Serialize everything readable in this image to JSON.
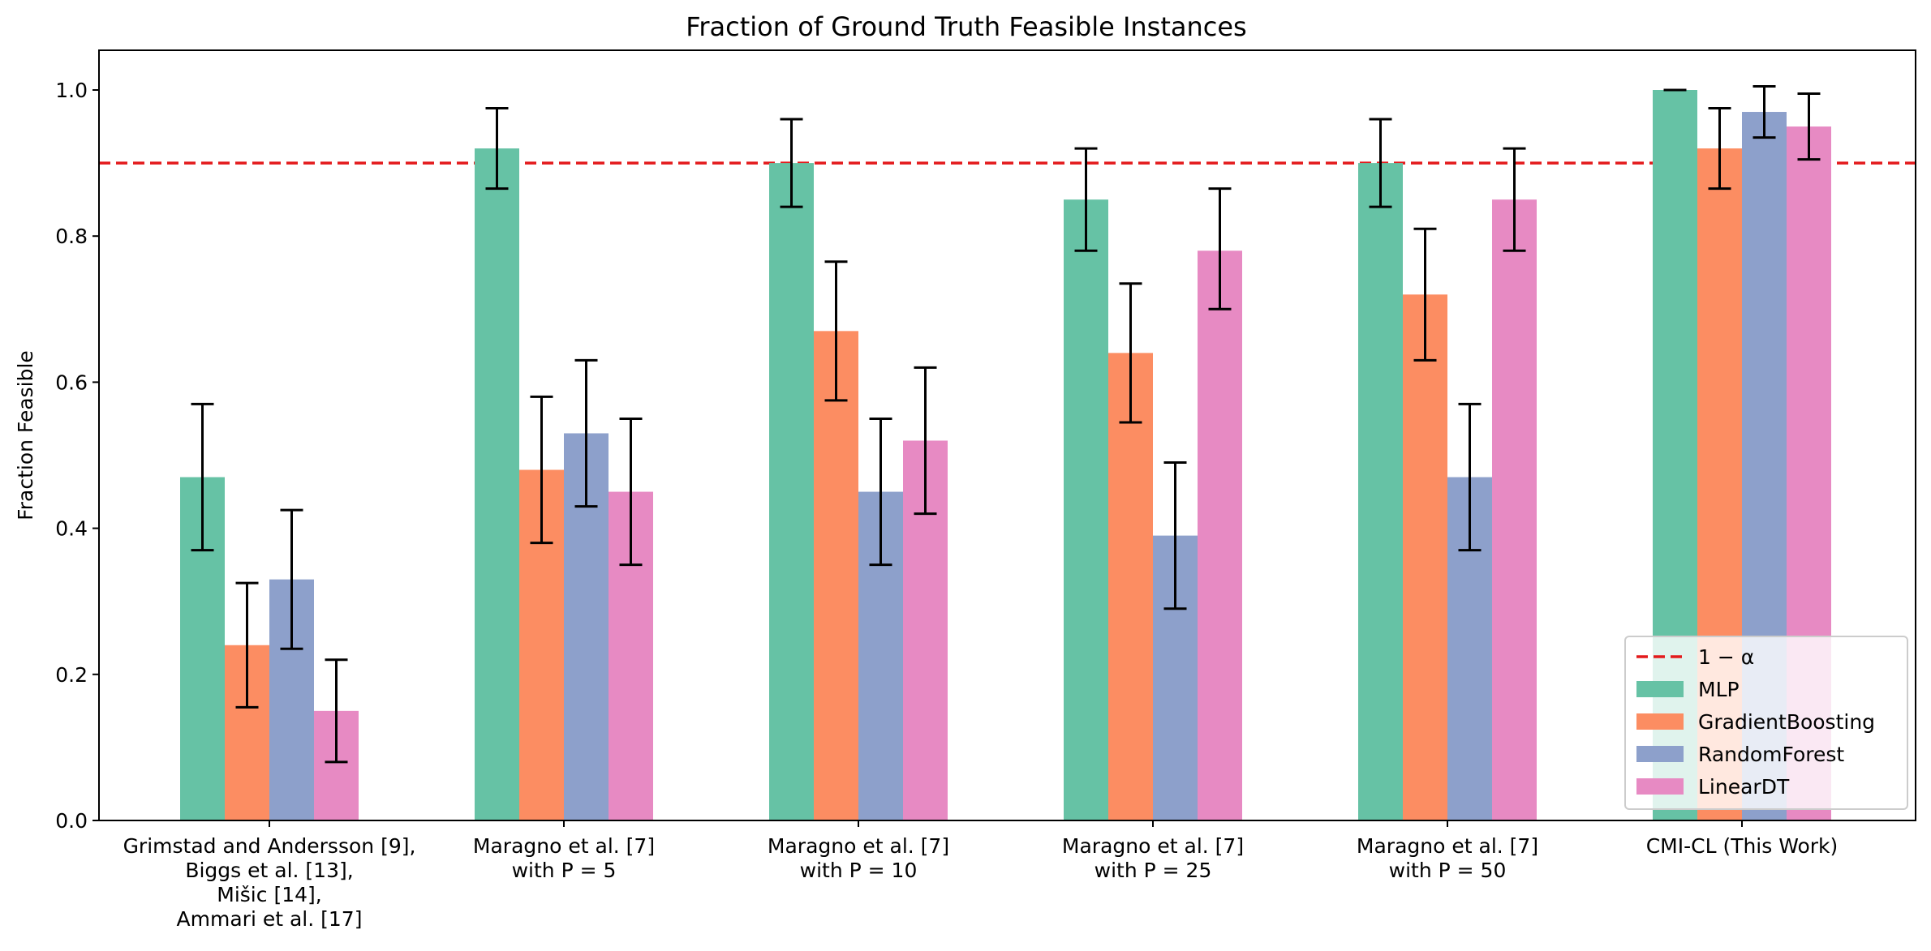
{
  "chart_data": {
    "type": "bar",
    "title": "Fraction of Ground Truth Feasible Instances",
    "xlabel": "",
    "ylabel": "Fraction Feasible",
    "ylim": [
      0,
      1.05
    ],
    "yticks": [
      "0.0",
      "0.2",
      "0.4",
      "0.6",
      "0.8",
      "1.0"
    ],
    "grid": false,
    "legend_position": "lower-right",
    "categories": [
      [
        "Grimstad and Andersson [9],",
        "Biggs et al. [13],",
        "Mišic [14],",
        "Ammari et al. [17]"
      ],
      [
        "Maragno et al. [7]",
        "with P = 5"
      ],
      [
        "Maragno et al. [7]",
        "with P = 10"
      ],
      [
        "Maragno et al. [7]",
        "with P = 25"
      ],
      [
        "Maragno et al. [7]",
        "with P = 50"
      ],
      [
        "CMI-CL (This Work)"
      ]
    ],
    "reference_line": {
      "label": "1 − α",
      "value": 0.9,
      "color": "#e31a1c",
      "style": "dashed"
    },
    "series": [
      {
        "name": "MLP",
        "color": "#66c2a5",
        "values": [
          0.47,
          0.92,
          0.9,
          0.85,
          0.9,
          1.0
        ],
        "err_low": [
          0.37,
          0.865,
          0.84,
          0.78,
          0.84,
          1.0
        ],
        "err_high": [
          0.57,
          0.975,
          0.96,
          0.92,
          0.96,
          1.0
        ]
      },
      {
        "name": "GradientBoosting",
        "color": "#fc8d62",
        "values": [
          0.24,
          0.48,
          0.67,
          0.64,
          0.72,
          0.92
        ],
        "err_low": [
          0.155,
          0.38,
          0.575,
          0.545,
          0.63,
          0.865
        ],
        "err_high": [
          0.325,
          0.58,
          0.765,
          0.735,
          0.81,
          0.975
        ]
      },
      {
        "name": "RandomForest",
        "color": "#8da0cb",
        "values": [
          0.33,
          0.53,
          0.45,
          0.39,
          0.47,
          0.97
        ],
        "err_low": [
          0.235,
          0.43,
          0.35,
          0.29,
          0.37,
          0.935
        ],
        "err_high": [
          0.425,
          0.63,
          0.55,
          0.49,
          0.57,
          1.005
        ]
      },
      {
        "name": "LinearDT",
        "color": "#e78ac3",
        "values": [
          0.15,
          0.45,
          0.52,
          0.78,
          0.85,
          0.95
        ],
        "err_low": [
          0.08,
          0.35,
          0.42,
          0.7,
          0.78,
          0.905
        ],
        "err_high": [
          0.22,
          0.55,
          0.62,
          0.865,
          0.92,
          0.995
        ]
      }
    ]
  }
}
